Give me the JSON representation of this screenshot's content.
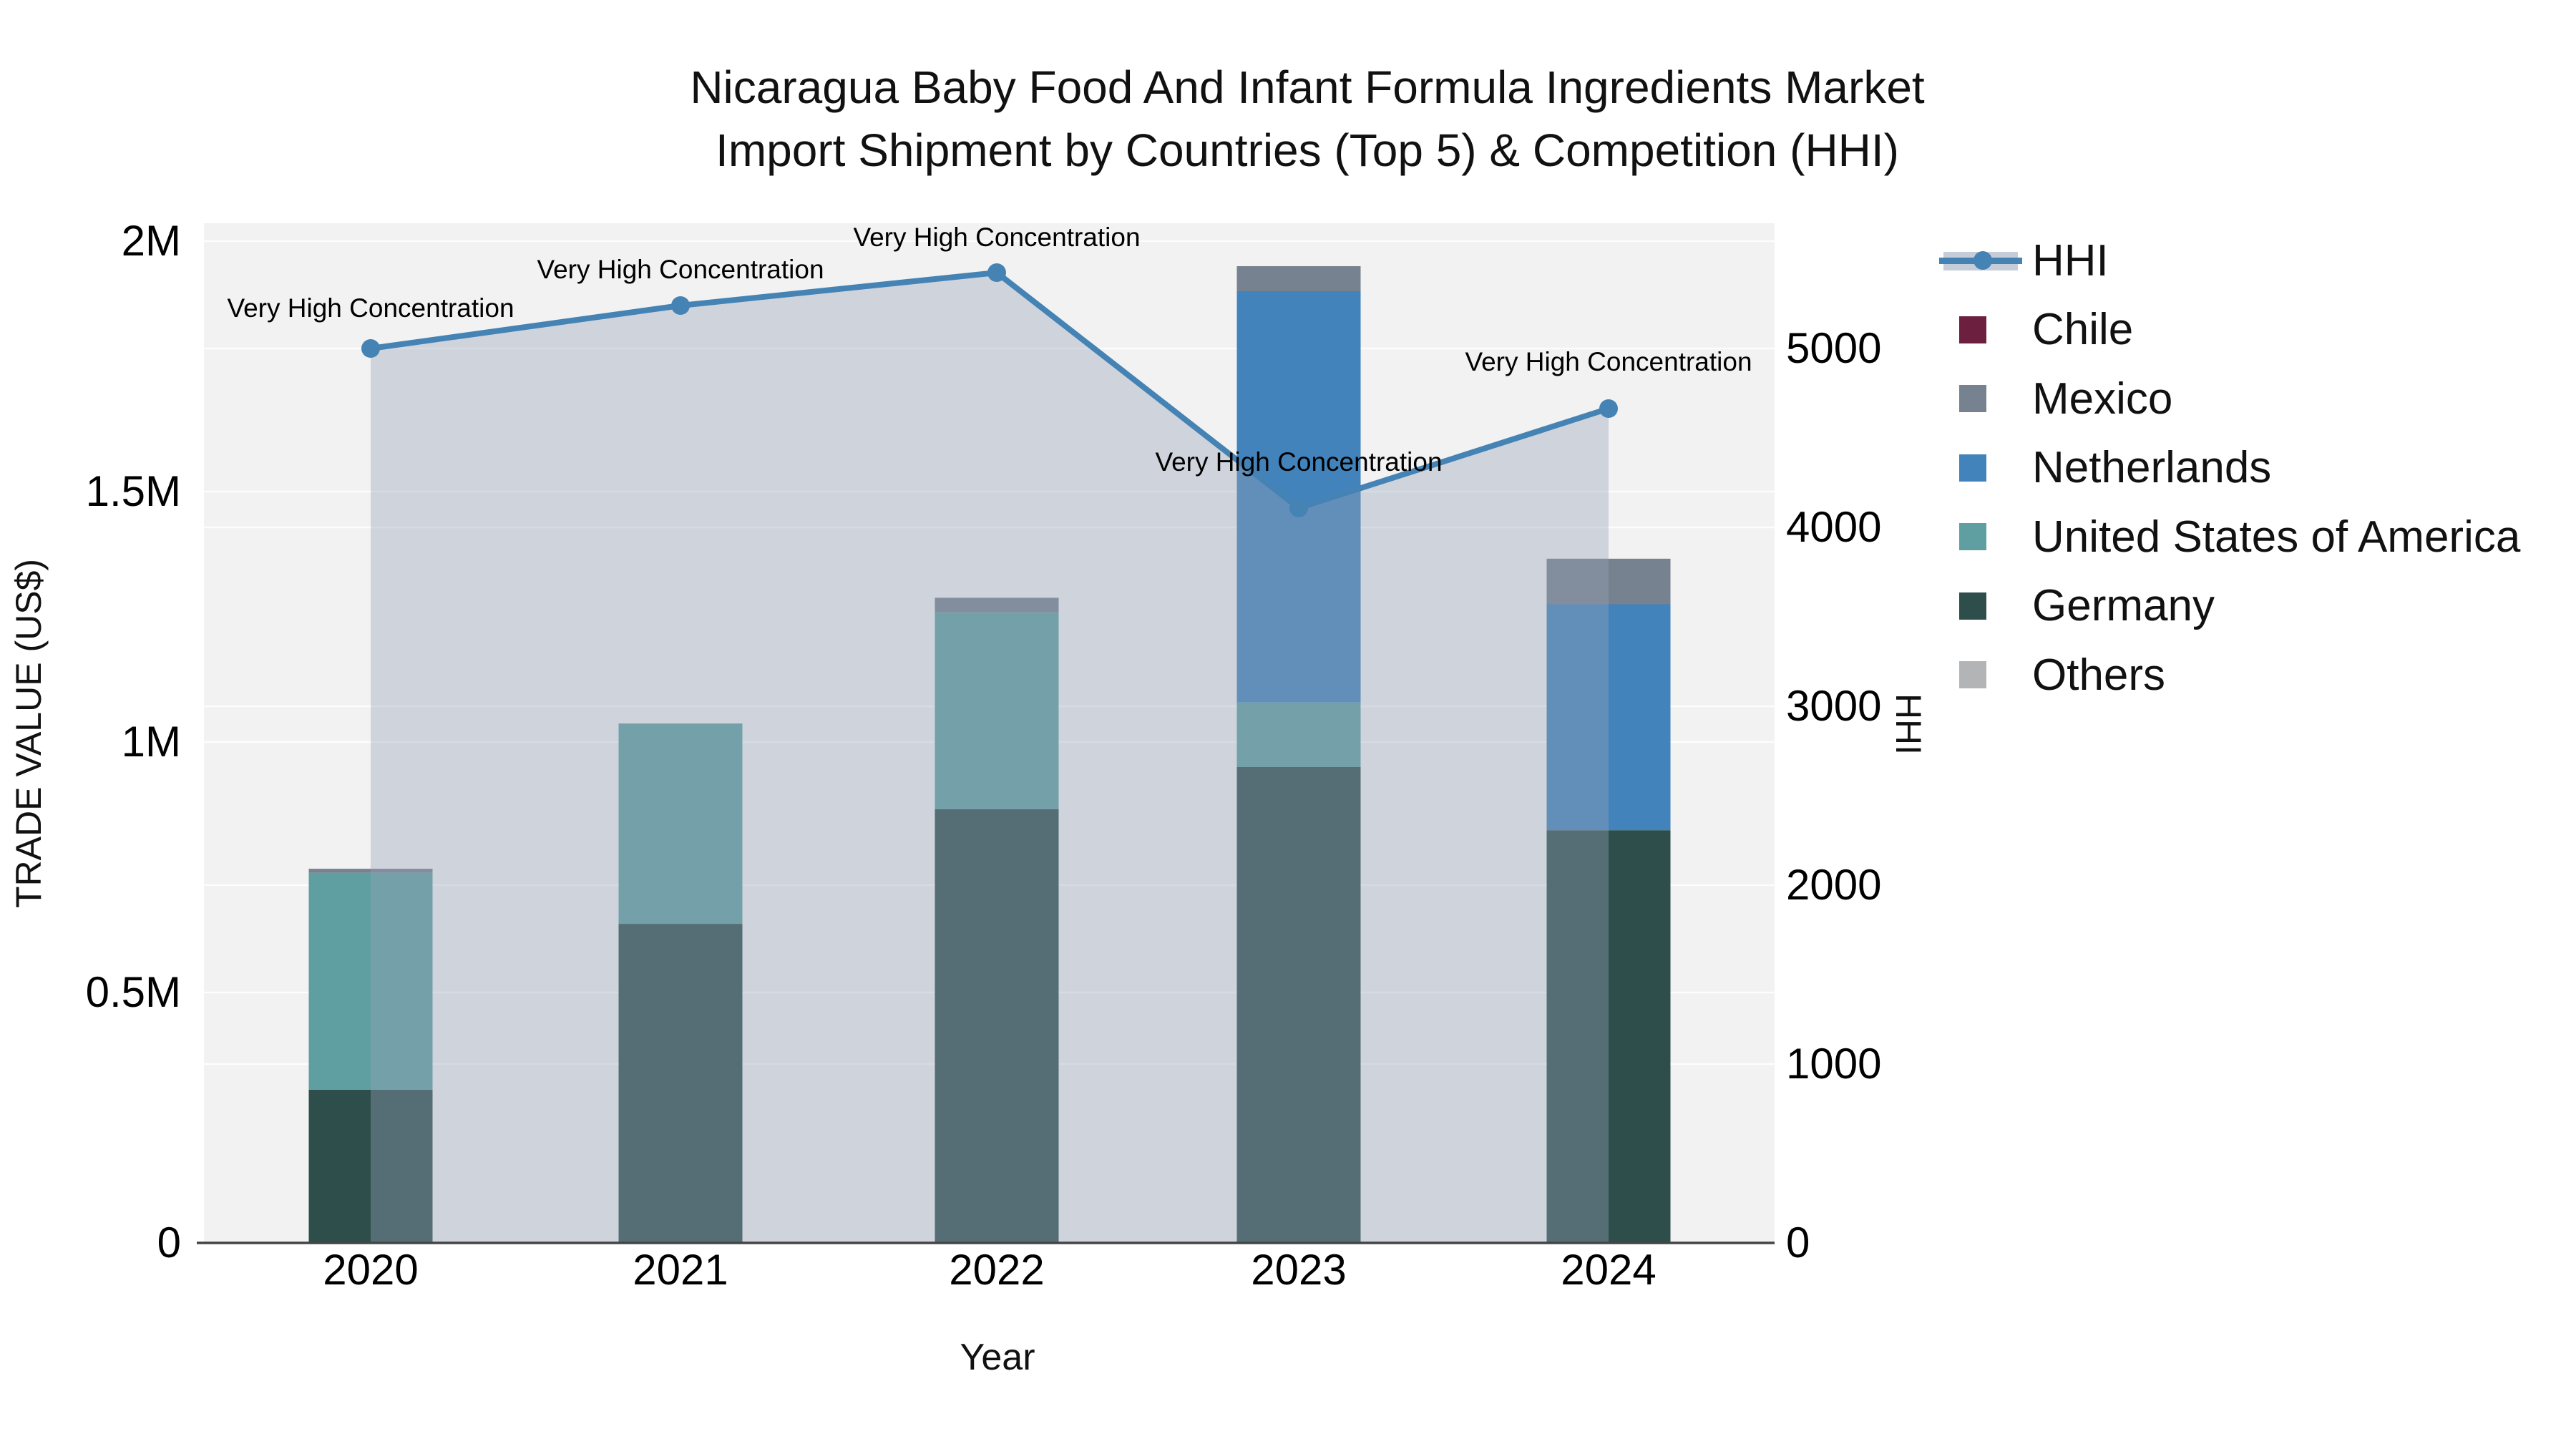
{
  "title": {
    "line1": "Nicaragua Baby Food And Infant Formula Ingredients Market",
    "line2": "Import Shipment by Countries (Top 5) & Competition (HHI)"
  },
  "axes": {
    "y_left": {
      "title": "TRADE VALUE (US$)",
      "ticks": [
        "0",
        "0.5M",
        "1M",
        "1.5M",
        "2M"
      ],
      "tick_values_musd": [
        0,
        0.5,
        1,
        1.5,
        2
      ],
      "range_musd": [
        0,
        2
      ]
    },
    "y_right": {
      "title": "HHI",
      "ticks": [
        "0",
        "1000",
        "2000",
        "3000",
        "4000",
        "5000"
      ],
      "tick_values": [
        0,
        1000,
        2000,
        3000,
        4000,
        5000
      ],
      "range": [
        0,
        5000
      ]
    },
    "x": {
      "title": "Year",
      "categories": [
        "2020",
        "2021",
        "2022",
        "2023",
        "2024"
      ]
    }
  },
  "legend": {
    "items": [
      {
        "label": "HHI",
        "marker": "line",
        "color": "#4583b5",
        "band_color": "#c6cdd8"
      },
      {
        "label": "Chile",
        "marker": "square",
        "color": "#6d1f40"
      },
      {
        "label": "Mexico",
        "marker": "square",
        "color": "#76828f"
      },
      {
        "label": "Netherlands",
        "marker": "square",
        "color": "#4383bb"
      },
      {
        "label": "United States of America",
        "marker": "square",
        "color": "#5f9fa1"
      },
      {
        "label": "Germany",
        "marker": "square",
        "color": "#2e4e4c"
      },
      {
        "label": "Others",
        "marker": "square",
        "color": "#b2b4b6"
      }
    ]
  },
  "chart_data": {
    "type": "bar",
    "subtype": "stacked-bars-with-hhi-line",
    "title": "Nicaragua Baby Food And Infant Formula Ingredients Market Import Shipment by Countries (Top 5) & Competition (HHI)",
    "xlabel": "Year",
    "ylabel_left": "TRADE VALUE (US$)",
    "ylabel_right": "HHI",
    "ylim_left_musd": [
      0,
      2
    ],
    "ylim_right": [
      0,
      5000
    ],
    "plot_bg": "#f2f2f2",
    "grid": "horizontal-both-axes",
    "legend_position": "right",
    "categories": [
      "2020",
      "2021",
      "2022",
      "2023",
      "2024"
    ],
    "stack_order_bottom_to_top": [
      "Germany",
      "United States of America",
      "Netherlands",
      "Mexico",
      "Chile",
      "Others"
    ],
    "series": [
      {
        "name": "HHI",
        "type": "line",
        "axis": "right",
        "color": "#4583b5",
        "area_fill": "rgba(150,162,185,0.38)",
        "values": [
          5000,
          5240,
          5424,
          4108,
          4664
        ]
      },
      {
        "name": "Chile",
        "type": "bar",
        "color": "#6d1f40",
        "values_musd": [
          0,
          0,
          0,
          0,
          0
        ]
      },
      {
        "name": "Mexico",
        "type": "bar",
        "color": "#76828f",
        "values_musd": [
          0.008,
          0,
          0.029,
          0.05,
          0.091
        ]
      },
      {
        "name": "Netherlands",
        "type": "bar",
        "color": "#4383bb",
        "values_musd": [
          0,
          0,
          0,
          0.821,
          0.451
        ]
      },
      {
        "name": "United States of America",
        "type": "bar",
        "color": "#5f9fa1",
        "values_musd": [
          0.433,
          0.4,
          0.393,
          0.129,
          0
        ]
      },
      {
        "name": "Germany",
        "type": "bar",
        "color": "#2e4e4c",
        "values_musd": [
          0.306,
          0.637,
          0.866,
          0.95,
          0.824
        ]
      },
      {
        "name": "Others",
        "type": "bar",
        "color": "#b2b4b6",
        "values_musd": [
          0,
          0,
          0,
          0,
          0
        ]
      }
    ],
    "annotations": [
      {
        "text": "Very High Concentration",
        "x": "2020"
      },
      {
        "text": "Very High Concentration",
        "x": "2021"
      },
      {
        "text": "Very High Concentration",
        "x": "2022"
      },
      {
        "text": "Very High Concentration",
        "x": "2023"
      },
      {
        "text": "Very High Concentration",
        "x": "2024"
      }
    ]
  }
}
